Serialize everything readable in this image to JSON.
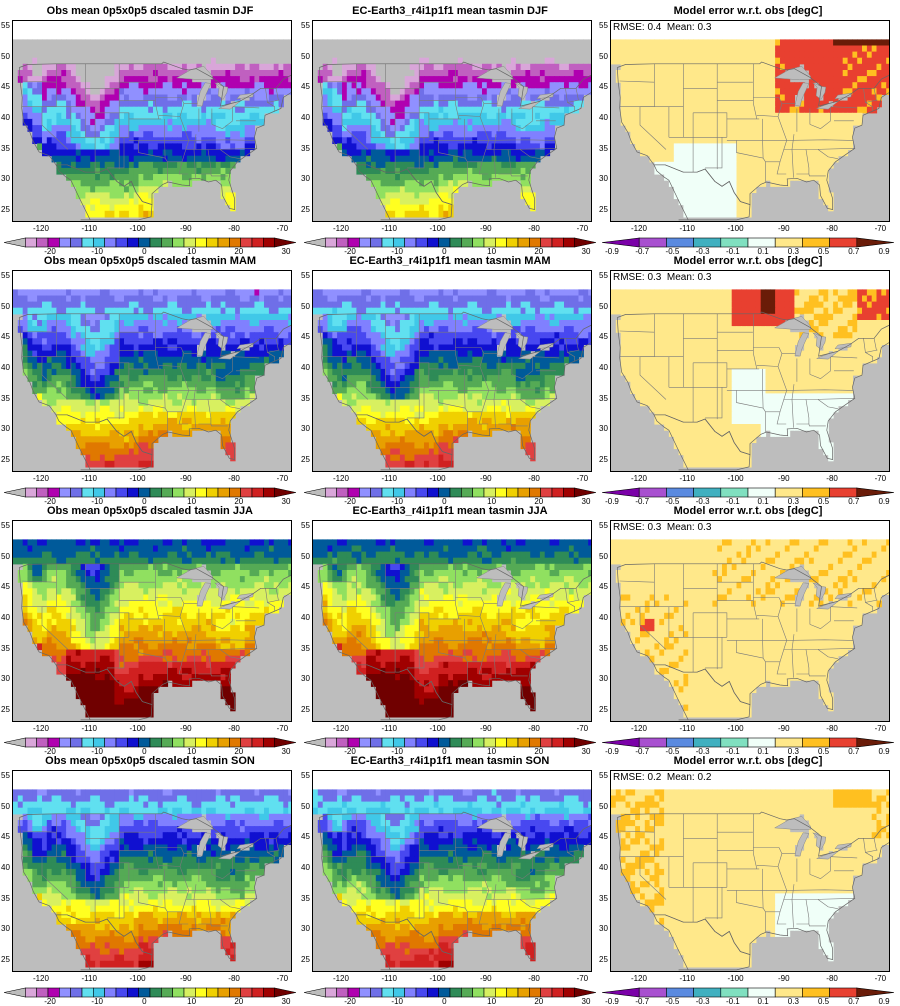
{
  "rows": [
    {
      "season": "DJF",
      "obs_title": "Obs mean 0p5x0p5 dscaled tasmin DJF",
      "mod_title": "EC-Earth3_r4i1p1f1 mean tasmin DJF",
      "err_title": "Model error w.r.t. obs [degC]",
      "err_stats": "RMSE: 0.4  Mean: 0.3"
    },
    {
      "season": "MAM",
      "obs_title": "Obs mean 0p5x0p5 dscaled tasmin MAM",
      "mod_title": "EC-Earth3_r4i1p1f1 mean tasmin MAM",
      "err_title": "Model error w.r.t. obs [degC]",
      "err_stats": "RMSE: 0.3  Mean: 0.3"
    },
    {
      "season": "JJA",
      "obs_title": "Obs mean 0p5x0p5 dscaled tasmin JJA",
      "mod_title": "EC-Earth3_r4i1p1f1 mean tasmin JJA",
      "err_title": "Model error w.r.t. obs [degC]",
      "err_stats": "RMSE: 0.3  Mean: 0.3"
    },
    {
      "season": "SON",
      "obs_title": "Obs mean 0p5x0p5 dscaled tasmin SON",
      "mod_title": "EC-Earth3_r4i1p1f1 mean tasmin SON",
      "err_title": "Model error w.r.t. obs [degC]",
      "err_stats": "RMSE: 0.2  Mean: 0.2"
    }
  ],
  "axes": {
    "lon_ticks": [
      "-120",
      "-110",
      "-100",
      "-90",
      "-80",
      "-70"
    ],
    "lat_ticks": [
      "55",
      "50",
      "45",
      "40",
      "35",
      "30",
      "25"
    ]
  },
  "temp_colorbar": {
    "labels": [
      "-20",
      "-10",
      "0",
      "10",
      "20",
      "30"
    ],
    "colors": [
      "#bdbdbd",
      "#d9a6d9",
      "#c060c0",
      "#b000b0",
      "#9090ff",
      "#6f6fe8",
      "#60e0f0",
      "#40c8e8",
      "#8080ff",
      "#4848f0",
      "#1010d0",
      "#005a9a",
      "#2e8b57",
      "#55aa55",
      "#90e060",
      "#d8f060",
      "#ffff20",
      "#f0d000",
      "#e8a000",
      "#e07800",
      "#e04040",
      "#d02020",
      "#a00000",
      "#700000"
    ]
  },
  "err_colorbar": {
    "labels": [
      "-0.9",
      "-0.7",
      "-0.5",
      "-0.3",
      "-0.1",
      "0.1",
      "0.3",
      "0.5",
      "0.7",
      "0.9"
    ],
    "colors": [
      "#7a00a8",
      "#a850d0",
      "#5a8ae0",
      "#40b0c0",
      "#80e0c0",
      "#f0fff8",
      "#ffe88a",
      "#ffc020",
      "#e84030",
      "#6a1c08"
    ]
  }
}
